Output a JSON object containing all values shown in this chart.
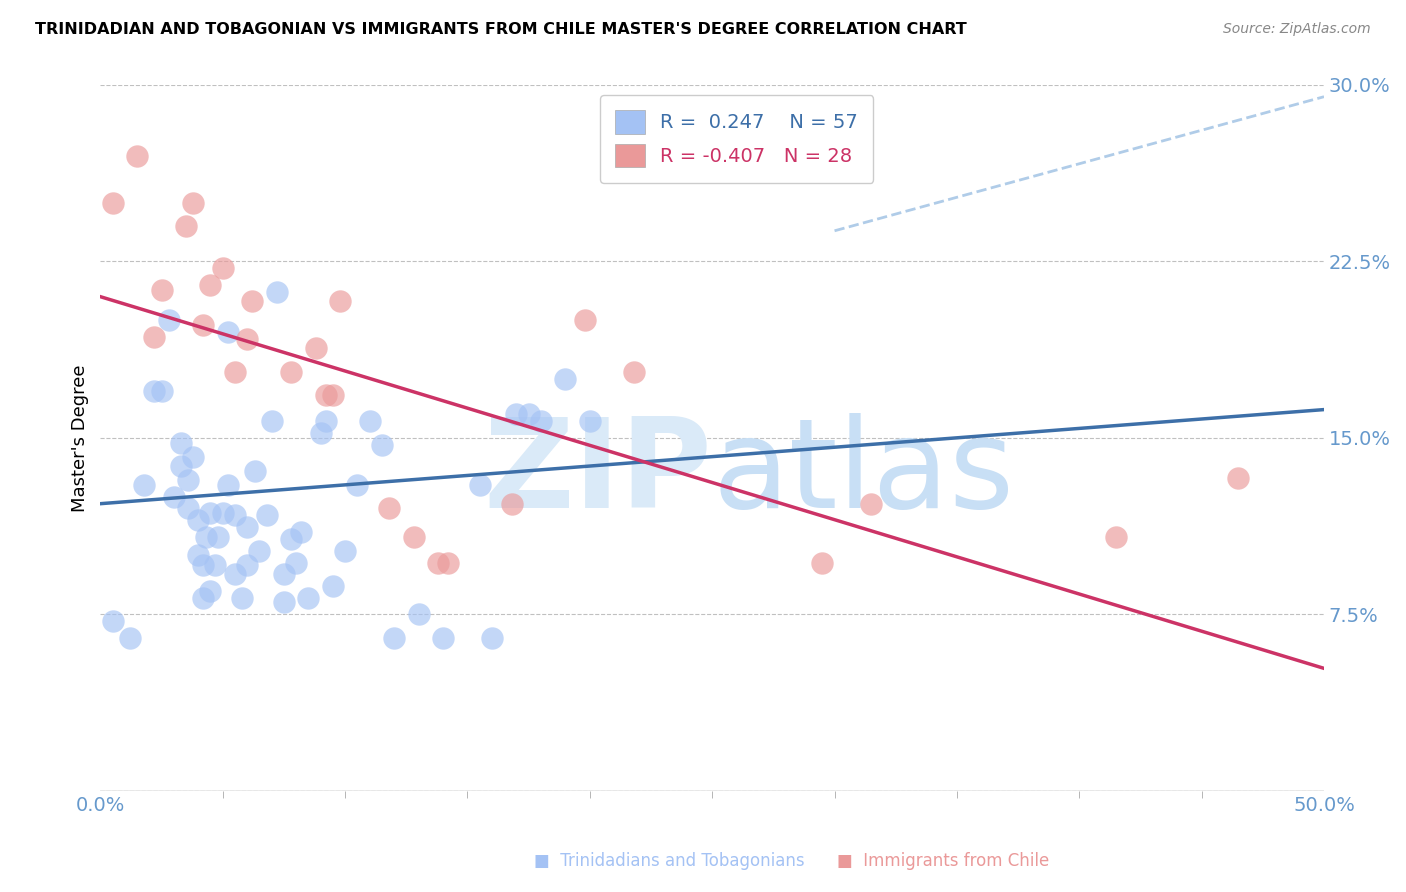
{
  "title": "TRINIDADIAN AND TOBAGONIAN VS IMMIGRANTS FROM CHILE MASTER'S DEGREE CORRELATION CHART",
  "source": "Source: ZipAtlas.com",
  "ylabel": "Master's Degree",
  "xlim": [
    0.0,
    0.5
  ],
  "ylim": [
    0.0,
    0.3
  ],
  "yticks": [
    0.0,
    0.075,
    0.15,
    0.225,
    0.3
  ],
  "ytick_labels": [
    "",
    "7.5%",
    "15.0%",
    "22.5%",
    "30.0%"
  ],
  "xtick_labels_edge": [
    "0.0%",
    "50.0%"
  ],
  "blue_scatter_color": "#a4c2f4",
  "pink_scatter_color": "#ea9999",
  "blue_line_color": "#3d6fa8",
  "pink_line_color": "#cc3366",
  "dashed_line_color": "#b0cce8",
  "grid_color": "#c0c0c0",
  "tick_label_color": "#6699cc",
  "background_color": "#ffffff",
  "watermark_color": "#daeaf8",
  "legend_label_blue": "R =  0.247    N = 57",
  "legend_label_pink": "R = -0.407   N = 28",
  "blue_scatter_x": [
    0.005,
    0.012,
    0.018,
    0.022,
    0.025,
    0.028,
    0.03,
    0.033,
    0.033,
    0.036,
    0.036,
    0.038,
    0.04,
    0.04,
    0.042,
    0.042,
    0.043,
    0.045,
    0.045,
    0.047,
    0.048,
    0.05,
    0.052,
    0.052,
    0.055,
    0.055,
    0.058,
    0.06,
    0.06,
    0.063,
    0.065,
    0.068,
    0.07,
    0.072,
    0.075,
    0.075,
    0.078,
    0.08,
    0.082,
    0.085,
    0.09,
    0.092,
    0.095,
    0.1,
    0.105,
    0.11,
    0.115,
    0.12,
    0.13,
    0.14,
    0.155,
    0.16,
    0.17,
    0.175,
    0.18,
    0.19,
    0.2
  ],
  "blue_scatter_y": [
    0.072,
    0.065,
    0.13,
    0.17,
    0.17,
    0.2,
    0.125,
    0.138,
    0.148,
    0.12,
    0.132,
    0.142,
    0.1,
    0.115,
    0.082,
    0.096,
    0.108,
    0.118,
    0.085,
    0.096,
    0.108,
    0.118,
    0.13,
    0.195,
    0.092,
    0.117,
    0.082,
    0.096,
    0.112,
    0.136,
    0.102,
    0.117,
    0.157,
    0.212,
    0.08,
    0.092,
    0.107,
    0.097,
    0.11,
    0.082,
    0.152,
    0.157,
    0.087,
    0.102,
    0.13,
    0.157,
    0.147,
    0.065,
    0.075,
    0.065,
    0.13,
    0.065,
    0.16,
    0.16,
    0.157,
    0.175,
    0.157
  ],
  "pink_scatter_x": [
    0.005,
    0.015,
    0.022,
    0.025,
    0.035,
    0.038,
    0.042,
    0.045,
    0.05,
    0.055,
    0.06,
    0.062,
    0.078,
    0.088,
    0.092,
    0.098,
    0.118,
    0.128,
    0.142,
    0.168,
    0.198,
    0.218,
    0.295,
    0.315,
    0.415,
    0.465,
    0.095,
    0.138
  ],
  "pink_scatter_y": [
    0.25,
    0.27,
    0.193,
    0.213,
    0.24,
    0.25,
    0.198,
    0.215,
    0.222,
    0.178,
    0.192,
    0.208,
    0.178,
    0.188,
    0.168,
    0.208,
    0.12,
    0.108,
    0.097,
    0.122,
    0.2,
    0.178,
    0.097,
    0.122,
    0.108,
    0.133,
    0.168,
    0.097
  ],
  "blue_line_x0": 0.0,
  "blue_line_x1": 0.5,
  "blue_line_y0": 0.122,
  "blue_line_y1": 0.162,
  "pink_line_x0": 0.0,
  "pink_line_x1": 0.5,
  "pink_line_y0": 0.21,
  "pink_line_y1": 0.052,
  "dashed_line_x0": 0.3,
  "dashed_line_x1": 0.5,
  "dashed_line_y0": 0.238,
  "dashed_line_y1": 0.295
}
